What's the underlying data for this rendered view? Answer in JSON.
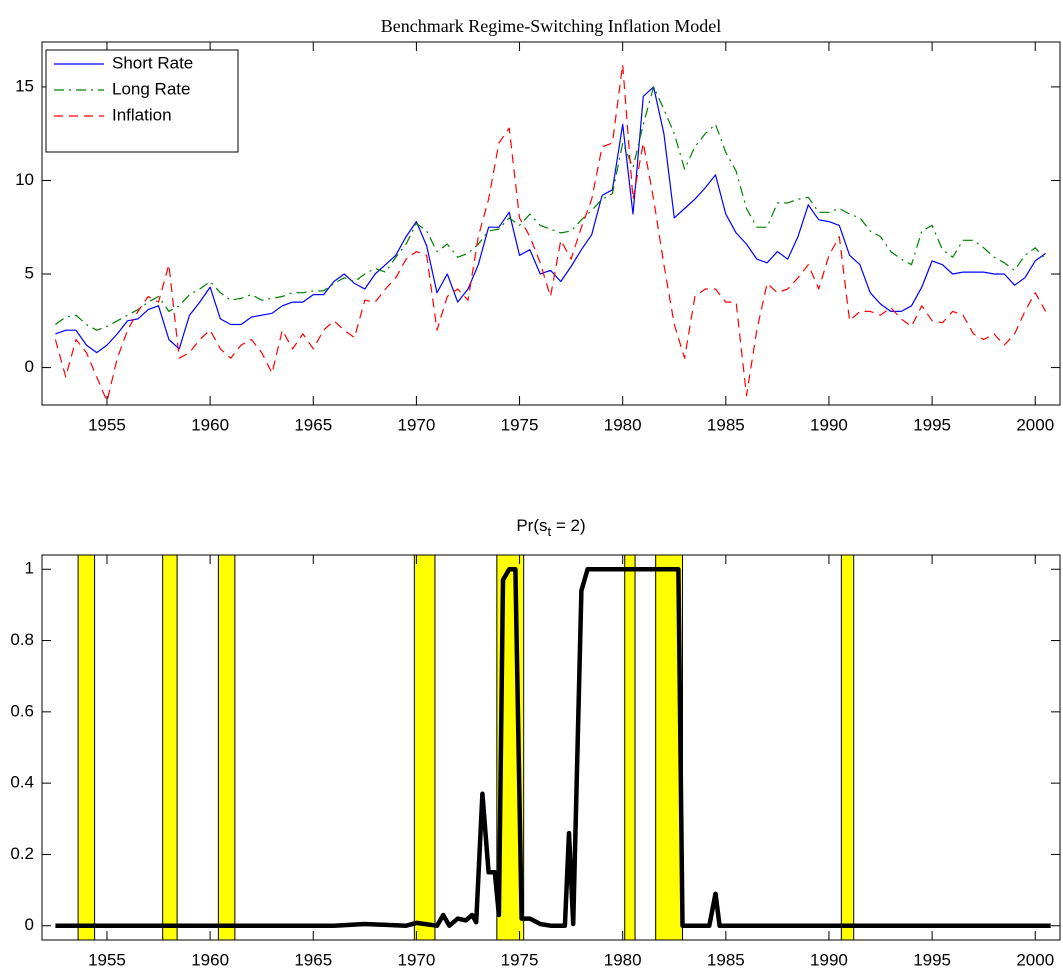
{
  "chart_data": [
    {
      "type": "line",
      "title": "Benchmark Regime-Switching Inflation Model",
      "x": [
        1952.5,
        1953,
        1953.5,
        1954,
        1954.5,
        1955,
        1955.5,
        1956,
        1956.5,
        1957,
        1957.5,
        1958,
        1958.5,
        1959,
        1959.5,
        1960,
        1960.5,
        1961,
        1961.5,
        1962,
        1962.5,
        1963,
        1963.5,
        1964,
        1964.5,
        1965,
        1965.5,
        1966,
        1966.5,
        1967,
        1967.5,
        1968,
        1968.5,
        1969,
        1969.5,
        1970,
        1970.5,
        1971,
        1971.5,
        1972,
        1972.5,
        1973,
        1973.5,
        1974,
        1974.5,
        1975,
        1975.5,
        1976,
        1976.5,
        1977,
        1977.5,
        1978,
        1978.5,
        1979,
        1979.5,
        1980,
        1980.5,
        1981,
        1981.5,
        1982,
        1982.5,
        1983,
        1983.5,
        1984,
        1984.5,
        1985,
        1985.5,
        1986,
        1986.5,
        1987,
        1987.5,
        1988,
        1988.5,
        1989,
        1989.5,
        1990,
        1990.5,
        1991,
        1991.5,
        1992,
        1992.5,
        1993,
        1993.5,
        1994,
        1994.5,
        1995,
        1995.5,
        1996,
        1996.5,
        1997,
        1997.5,
        1998,
        1998.5,
        1999,
        1999.5,
        2000,
        2000.5
      ],
      "series": [
        {
          "name": "Short Rate",
          "color": "#0000ff",
          "dash": "solid",
          "values": [
            1.8,
            2.0,
            2.0,
            1.2,
            0.8,
            1.2,
            1.8,
            2.5,
            2.6,
            3.1,
            3.3,
            1.5,
            1.0,
            2.8,
            3.5,
            4.3,
            2.6,
            2.3,
            2.3,
            2.7,
            2.8,
            2.9,
            3.3,
            3.5,
            3.5,
            3.9,
            3.9,
            4.6,
            5.0,
            4.5,
            4.2,
            5.0,
            5.5,
            6.0,
            7.0,
            7.8,
            6.5,
            4.0,
            5.0,
            3.5,
            4.2,
            5.5,
            7.5,
            7.5,
            8.3,
            6.0,
            6.3,
            5.0,
            5.2,
            4.6,
            5.4,
            6.3,
            7.1,
            9.2,
            9.5,
            13.0,
            8.2,
            14.5,
            15.0,
            12.5,
            8.0,
            8.5,
            9.0,
            9.6,
            10.3,
            8.2,
            7.2,
            6.6,
            5.8,
            5.6,
            6.2,
            5.8,
            7.0,
            8.7,
            7.9,
            7.8,
            7.6,
            6.0,
            5.5,
            4.0,
            3.4,
            3.0,
            3.0,
            3.3,
            4.3,
            5.7,
            5.5,
            5.0,
            5.1,
            5.1,
            5.1,
            5.0,
            5.0,
            4.4,
            4.8,
            5.7,
            6.1
          ]
        },
        {
          "name": "Long Rate",
          "color": "#007f00",
          "dash": "dashdot",
          "values": [
            2.3,
            2.7,
            2.8,
            2.3,
            2.0,
            2.2,
            2.5,
            2.8,
            3.1,
            3.5,
            3.8,
            3.0,
            3.3,
            3.9,
            4.2,
            4.6,
            4.0,
            3.6,
            3.7,
            3.9,
            3.6,
            3.7,
            3.8,
            4.0,
            4.0,
            4.1,
            4.1,
            4.5,
            4.8,
            4.6,
            5.0,
            5.3,
            5.1,
            5.9,
            6.6,
            7.7,
            7.3,
            6.2,
            6.6,
            5.9,
            6.1,
            6.6,
            7.3,
            7.4,
            8.0,
            7.6,
            8.2,
            7.6,
            7.4,
            7.2,
            7.3,
            7.9,
            8.4,
            9.0,
            9.3,
            12.0,
            10.7,
            13.0,
            15.0,
            13.8,
            12.5,
            10.6,
            11.8,
            12.5,
            13.0,
            11.5,
            10.5,
            8.5,
            7.5,
            7.5,
            8.8,
            8.8,
            9.0,
            9.1,
            8.3,
            8.3,
            8.5,
            8.2,
            8.0,
            7.3,
            7.0,
            6.2,
            5.8,
            5.5,
            7.3,
            7.6,
            6.3,
            5.9,
            6.8,
            6.8,
            6.4,
            5.9,
            5.6,
            5.2,
            6.0,
            6.4,
            5.8
          ]
        },
        {
          "name": "Inflation",
          "color": "#ff0000",
          "dash": "dashed",
          "values": [
            1.5,
            -0.5,
            1.5,
            0.8,
            -0.5,
            -1.8,
            0.5,
            2.0,
            3.0,
            3.8,
            3.5,
            5.5,
            0.5,
            0.8,
            1.5,
            2.0,
            1.0,
            0.5,
            1.2,
            1.5,
            0.8,
            -0.3,
            2.0,
            1.0,
            1.8,
            1.0,
            2.0,
            2.5,
            2.0,
            1.6,
            3.6,
            3.5,
            4.2,
            4.8,
            5.8,
            6.2,
            6.0,
            2.0,
            3.8,
            4.2,
            3.6,
            7.0,
            9.0,
            12.0,
            12.8,
            8.0,
            7.0,
            5.6,
            3.8,
            6.8,
            5.8,
            7.5,
            9.0,
            11.8,
            12.0,
            16.2,
            9.0,
            12.0,
            9.0,
            5.5,
            2.3,
            0.5,
            3.8,
            4.2,
            4.2,
            3.5,
            3.5,
            -1.5,
            2.0,
            4.5,
            4.0,
            4.2,
            4.8,
            5.5,
            4.2,
            6.0,
            7.0,
            2.5,
            3.0,
            3.0,
            2.8,
            3.2,
            2.6,
            2.2,
            3.3,
            2.5,
            2.4,
            3.0,
            2.8,
            1.8,
            1.5,
            1.8,
            1.2,
            1.8,
            3.0,
            4.0,
            3.0
          ]
        }
      ],
      "xlim": [
        1951.85,
        2001.2
      ],
      "ylim": [
        -2,
        17.4
      ],
      "xticks": [
        1955,
        1960,
        1965,
        1970,
        1975,
        1980,
        1985,
        1990,
        1995,
        2000
      ],
      "yticks": [
        0,
        5,
        10,
        15
      ],
      "legend": "upper left"
    },
    {
      "type": "line",
      "title": "Pr(s_t = 2)",
      "x": [
        1952.5,
        1966,
        1967.5,
        1969.5,
        1970,
        1971,
        1971.3,
        1971.6,
        1972,
        1972.4,
        1972.7,
        1972.9,
        1973.2,
        1973.5,
        1973.8,
        1974,
        1974.2,
        1974.5,
        1974.8,
        1975.1,
        1975.5,
        1976,
        1976.5,
        1977.2,
        1977.4,
        1977.6,
        1978,
        1978.3,
        1982.7,
        1982.9,
        1984.2,
        1984.5,
        1984.7,
        2000.75
      ],
      "values": [
        0,
        0,
        0.005,
        0,
        0.008,
        0,
        0.03,
        0,
        0.02,
        0.015,
        0.03,
        0.01,
        0.37,
        0.15,
        0.15,
        0.03,
        0.97,
        1,
        1,
        0.02,
        0.02,
        0.005,
        0,
        0,
        0.26,
        0.005,
        0.94,
        1,
        1,
        0,
        0,
        0.09,
        0,
        0
      ],
      "color": "#000000",
      "shaded_regions": [
        [
          1953.6,
          1954.4
        ],
        [
          1957.7,
          1958.4
        ],
        [
          1960.4,
          1961.2
        ],
        [
          1969.9,
          1970.9
        ],
        [
          1973.9,
          1975.2
        ],
        [
          1980.1,
          1980.6
        ],
        [
          1981.6,
          1982.9
        ],
        [
          1990.6,
          1991.2
        ]
      ],
      "shade_color": "#ffff00",
      "xlim": [
        1951.85,
        2001.2
      ],
      "ylim": [
        -0.04,
        1.04
      ],
      "xticks": [
        1955,
        1960,
        1965,
        1970,
        1975,
        1980,
        1985,
        1990,
        1995,
        2000
      ],
      "yticks": [
        0,
        0.2,
        0.4,
        0.6,
        0.8,
        1
      ]
    }
  ]
}
